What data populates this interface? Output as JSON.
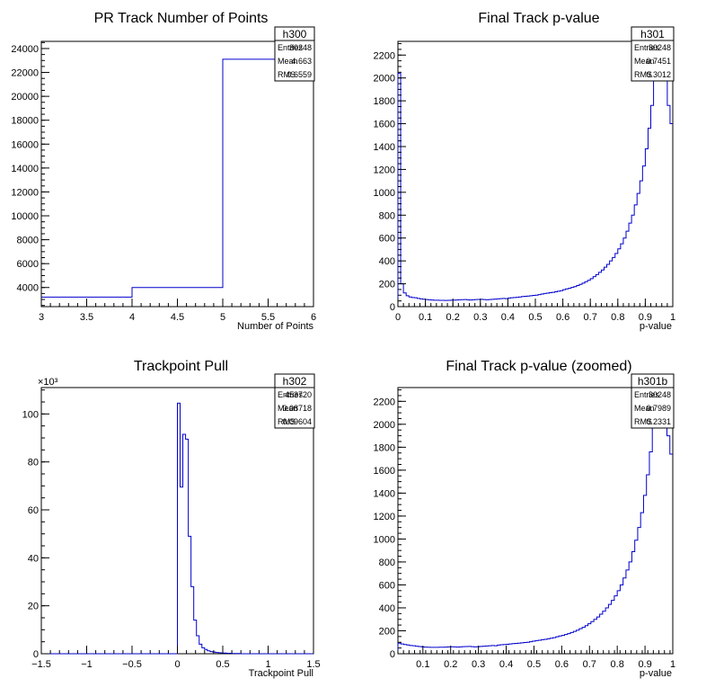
{
  "chart_data": [
    {
      "type": "histogram",
      "title": "PR Track Number of Points",
      "xlabel": "Number of Points",
      "ylabel": "",
      "xlim": [
        3,
        6
      ],
      "ylim": [
        2400,
        24600
      ],
      "x_ticks": [
        "3",
        "3.5",
        "4",
        "4.5",
        "5",
        "5.5",
        "6"
      ],
      "y_ticks": [
        "4000",
        "6000",
        "8000",
        "10000",
        "12000",
        "14000",
        "16000",
        "18000",
        "20000",
        "22000",
        "24000"
      ],
      "y_exponent": "",
      "bins": [
        [
          3,
          4,
          3200
        ],
        [
          4,
          5,
          4000
        ],
        [
          5,
          6,
          23100
        ]
      ],
      "stats": {
        "name": "h300",
        "rows": [
          {
            "label": "Entries",
            "value": "30248"
          },
          {
            "label": "Mean",
            "value": "4.663"
          },
          {
            "label": "RMS",
            "value": "0.6559"
          }
        ]
      }
    },
    {
      "type": "histogram",
      "title": "Final Track p-value",
      "xlabel": "p-value",
      "ylabel": "",
      "xlim": [
        0,
        1
      ],
      "ylim": [
        0,
        2320
      ],
      "x_ticks": [
        "0",
        "0.1",
        "0.2",
        "0.3",
        "0.4",
        "0.5",
        "0.6",
        "0.7",
        "0.8",
        "0.9",
        "1"
      ],
      "y_ticks": [
        "0",
        "200",
        "400",
        "600",
        "800",
        "1000",
        "1200",
        "1400",
        "1600",
        "1800",
        "2000",
        "2200"
      ],
      "y_exponent": "",
      "bin_range": [
        0,
        1
      ],
      "values": [
        2040,
        200,
        120,
        95,
        85,
        80,
        78,
        72,
        68,
        65,
        62,
        60,
        58,
        56,
        56,
        55,
        55,
        54,
        55,
        56,
        57,
        58,
        60,
        61,
        62,
        60,
        58,
        60,
        62,
        63,
        64,
        62,
        60,
        62,
        64,
        66,
        68,
        70,
        72,
        70,
        75,
        78,
        80,
        82,
        85,
        88,
        90,
        92,
        95,
        98,
        100,
        105,
        110,
        115,
        118,
        122,
        125,
        130,
        135,
        140,
        148,
        155,
        160,
        168,
        175,
        185,
        195,
        205,
        218,
        230,
        245,
        262,
        280,
        300,
        320,
        345,
        370,
        400,
        430,
        465,
        505,
        550,
        600,
        660,
        730,
        800,
        890,
        990,
        1100,
        1230,
        1380,
        1560,
        1760,
        1980,
        2240,
        2320,
        2320,
        2320,
        1760,
        1600
      ],
      "stats": {
        "name": "h301",
        "rows": [
          {
            "label": "Entries",
            "value": "30248"
          },
          {
            "label": "Mean",
            "value": "0.7451"
          },
          {
            "label": "RMS",
            "value": "0.3012"
          }
        ]
      }
    },
    {
      "type": "histogram",
      "title": "Trackpoint Pull",
      "xlabel": "Trackpoint Pull",
      "ylabel": "",
      "xlim": [
        -1.5,
        1.5
      ],
      "ylim": [
        0,
        111
      ],
      "x_ticks": [
        "−1.5",
        "−1",
        "−0.5",
        "0",
        "0.5",
        "1",
        "1.5"
      ],
      "y_ticks": [
        "0",
        "20",
        "40",
        "60",
        "80",
        "100"
      ],
      "y_exponent": "×10³",
      "bin_range": [
        -1.5,
        1.5
      ],
      "values": [
        0,
        0,
        0,
        0,
        0,
        0,
        0,
        0,
        0,
        0,
        0,
        0,
        0,
        0,
        0,
        0,
        0,
        0,
        0,
        0,
        0,
        0,
        0,
        0,
        0,
        0,
        0,
        0,
        0,
        0,
        0,
        0,
        0,
        0,
        0,
        0,
        0,
        0,
        0,
        0,
        0,
        0,
        0,
        0,
        0,
        0,
        0,
        0,
        0,
        0,
        104.5,
        69.5,
        91.5,
        89.5,
        49,
        28,
        14,
        7.5,
        4,
        2.5,
        1.8,
        1.2,
        0.9,
        0.7,
        0.5,
        0.4,
        0.3,
        0.3,
        0.2,
        0.2,
        0.1,
        0.1,
        0.1,
        0,
        0,
        0,
        0,
        0,
        0,
        0,
        0,
        0,
        0,
        0,
        0,
        0,
        0,
        0,
        0,
        0,
        0,
        0,
        0,
        0,
        0,
        0,
        0,
        0,
        0,
        0
      ],
      "stats": {
        "name": "h302",
        "rows": [
          {
            "label": "Entries",
            "value": "453720"
          },
          {
            "label": "Mean",
            "value": "0.08718"
          },
          {
            "label": "RMS",
            "value": "0.09604"
          }
        ]
      }
    },
    {
      "type": "histogram",
      "title": "Final Track p-value (zoomed)",
      "xlabel": "p-value",
      "ylabel": "",
      "xlim": [
        0.01,
        1
      ],
      "ylim": [
        0,
        2320
      ],
      "x_ticks": [
        "0.1",
        "0.2",
        "0.3",
        "0.4",
        "0.5",
        "0.6",
        "0.7",
        "0.8",
        "0.9",
        "1"
      ],
      "y_ticks": [
        "0",
        "200",
        "400",
        "600",
        "800",
        "1000",
        "1200",
        "1400",
        "1600",
        "1800",
        "2000",
        "2200"
      ],
      "y_exponent": "",
      "bin_range": [
        0.01,
        1
      ],
      "values": [
        92,
        85,
        80,
        76,
        72,
        70,
        66,
        63,
        60,
        58,
        57,
        56,
        56,
        56,
        57,
        57,
        58,
        60,
        61,
        60,
        58,
        60,
        62,
        63,
        64,
        62,
        60,
        62,
        64,
        66,
        68,
        70,
        72,
        70,
        75,
        78,
        80,
        82,
        85,
        88,
        90,
        92,
        95,
        98,
        100,
        105,
        110,
        115,
        118,
        122,
        125,
        130,
        135,
        140,
        148,
        155,
        160,
        168,
        175,
        185,
        195,
        205,
        218,
        230,
        245,
        262,
        280,
        300,
        320,
        345,
        370,
        400,
        430,
        465,
        505,
        550,
        600,
        660,
        730,
        800,
        890,
        990,
        1100,
        1230,
        1380,
        1560,
        1760,
        1980,
        2240,
        2320,
        2320,
        2320,
        1900,
        1740
      ],
      "stats": {
        "name": "h301b",
        "rows": [
          {
            "label": "Entries",
            "value": "30248"
          },
          {
            "label": "Mean",
            "value": "0.7989"
          },
          {
            "label": "RMS",
            "value": "0.2331"
          }
        ]
      }
    }
  ],
  "colors": {
    "line": "#0000cc",
    "frame": "#000000",
    "background": "#ffffff"
  }
}
